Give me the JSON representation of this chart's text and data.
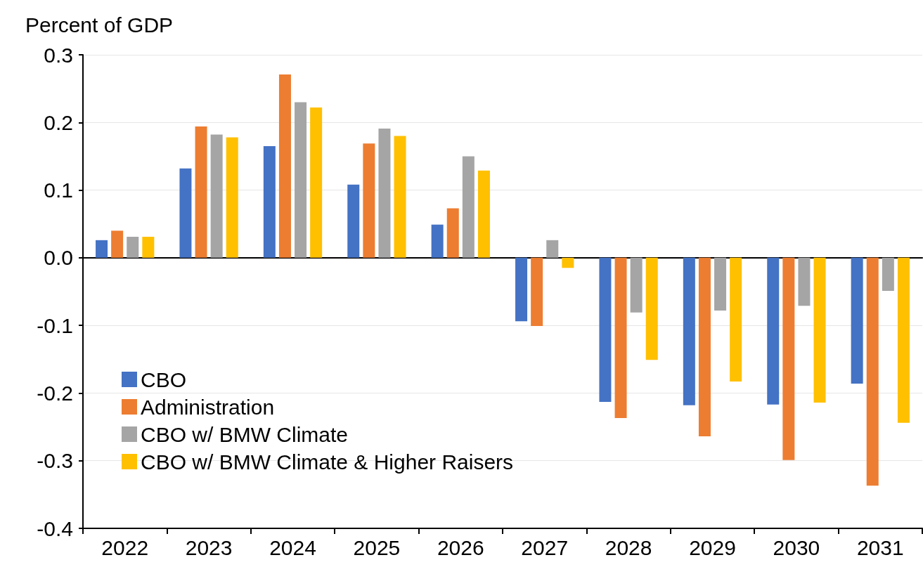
{
  "chart_data": {
    "type": "bar",
    "ylabel": "Percent of GDP",
    "categories": [
      "2022",
      "2023",
      "2024",
      "2025",
      "2026",
      "2027",
      "2028",
      "2029",
      "2030",
      "2031"
    ],
    "series": [
      {
        "name": "CBO",
        "color": "#4472c4",
        "values": [
          0.026,
          0.132,
          0.165,
          0.108,
          0.049,
          -0.094,
          -0.213,
          -0.218,
          -0.217,
          -0.186
        ]
      },
      {
        "name": "Administration",
        "color": "#ed7d31",
        "values": [
          0.04,
          0.194,
          0.271,
          0.169,
          0.073,
          -0.101,
          -0.237,
          -0.264,
          -0.299,
          -0.337
        ]
      },
      {
        "name": "CBO w/ BMW Climate",
        "color": "#a5a5a5",
        "values": [
          0.031,
          0.182,
          0.23,
          0.191,
          0.15,
          0.026,
          -0.081,
          -0.078,
          -0.071,
          -0.049
        ]
      },
      {
        "name": "CBO w/ BMW Climate & Higher Raisers",
        "color": "#ffc000",
        "values": [
          0.031,
          0.178,
          0.222,
          0.18,
          0.129,
          -0.015,
          -0.151,
          -0.183,
          -0.214,
          -0.244
        ]
      }
    ],
    "ylim": [
      -0.4,
      0.3
    ],
    "yticks": [
      -0.4,
      -0.3,
      -0.2,
      -0.1,
      {
        "value": 0,
        "label": "0.0"
      },
      0.1,
      0.2,
      0.3
    ],
    "grid": "y",
    "legend": "bottom left"
  }
}
